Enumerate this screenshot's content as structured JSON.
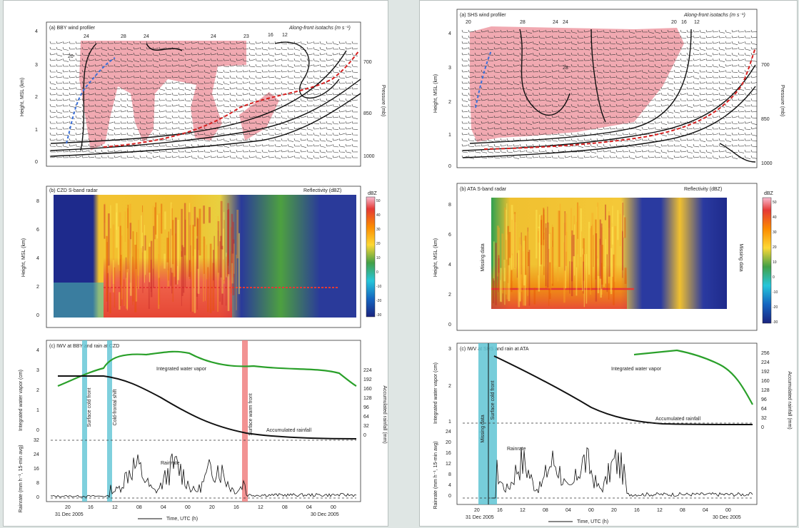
{
  "colors": {
    "page_bg": "#dfe6e4",
    "isotach_fill": "#f0a0a8",
    "front_red": "#d62020",
    "front_blue": "#3a6fd8",
    "ivw_green": "#2aa02a",
    "surface_cold_front_bar": "#5fc4d4",
    "warm_front_bar": "#f08080"
  },
  "left": {
    "panel_a": {
      "label": "(a) BBY wind profiler",
      "right_label": "Along-front isotachs (m s⁻¹)",
      "ylabel": "Height, MSL (km)",
      "ylabel_right": "Pressure (mb)",
      "yticks": [
        "4",
        "3",
        "2",
        "1",
        "0"
      ],
      "pressure_ticks": [
        "700",
        "850",
        "1000"
      ],
      "isotach_labels": [
        "24",
        "28",
        "24",
        "24",
        "23",
        "16",
        "12",
        "20"
      ]
    },
    "panel_b": {
      "label": "(b) CZD S-band radar",
      "right_label": "Reflectivity (dBZ)",
      "ylabel": "Height, MSL (km)",
      "yticks": [
        "8",
        "6",
        "4",
        "2",
        "0"
      ],
      "colorbar_unit": "dBZ",
      "colorbar_ticks": [
        "50",
        "40",
        "30",
        "20",
        "10",
        "0",
        "-10",
        "-20",
        "-30"
      ]
    },
    "panel_c": {
      "label": "(c) IWV at BBY and rain at CZD",
      "ylabel_top": "Integrated water vapor (cm)",
      "ylabel_bottom": "Rainrate (mm h⁻¹, 15-min avg)",
      "ylabel_right": "Accumulated rainfall (mm)",
      "left_ticks_top": [
        "4",
        "3",
        "2",
        "1",
        "0"
      ],
      "left_ticks_bottom": [
        "32",
        "24",
        "16",
        "8",
        "0"
      ],
      "right_ticks": [
        "224",
        "192",
        "160",
        "128",
        "96",
        "64",
        "32",
        "0"
      ],
      "curve_labels": {
        "ivw": "Integrated water vapor",
        "acc": "Accumulated rainfall",
        "rain": "Rainrate"
      },
      "event_labels": [
        "Surface cold front",
        "Cold-frontal shift",
        "Surface warm front"
      ],
      "xticks": [
        "20",
        "16",
        "12",
        "08",
        "04",
        "00",
        "20",
        "16",
        "12",
        "08",
        "04",
        "00"
      ],
      "date_left": "31 Dec 2005",
      "date_right": "30 Dec 2005",
      "xlabel": "Time, UTC (h)"
    }
  },
  "right": {
    "panel_a": {
      "label": "(a) SHS wind profiler",
      "right_label": "Along-front isotachs (m s⁻¹)",
      "ylabel": "Height, MSL (km)",
      "ylabel_right": "Pressure (mb)",
      "yticks": [
        "4",
        "3",
        "2",
        "1",
        "0"
      ],
      "pressure_ticks": [
        "700",
        "850",
        "1000"
      ],
      "isotach_labels": [
        "20",
        "28",
        "24",
        "24",
        "20",
        "16",
        "12",
        "28"
      ]
    },
    "panel_b": {
      "label": "(b) ATA S-band radar",
      "right_label": "Reflectivity (dBZ)",
      "ylabel": "Height, MSL (km)",
      "yticks": [
        "8",
        "6",
        "4",
        "2",
        "0"
      ],
      "missing_left": "Missing data",
      "missing_right": "Missing data",
      "colorbar_unit": "dBZ",
      "colorbar_ticks": [
        "50",
        "40",
        "30",
        "20",
        "10",
        "0",
        "-10",
        "-20",
        "-30"
      ]
    },
    "panel_c": {
      "label": "(c) IWV at SHS and rain at ATA",
      "ylabel_top": "Integrated water vapor (cm)",
      "ylabel_bottom": "Rainrate (mm h⁻¹, 15-min avg)",
      "ylabel_right": "Accumulated rainfall (mm)",
      "left_ticks_top": [
        "3",
        "2",
        "1"
      ],
      "left_ticks_bottom": [
        "24",
        "20",
        "16",
        "12",
        "8",
        "4",
        "0"
      ],
      "right_ticks": [
        "256",
        "224",
        "192",
        "160",
        "128",
        "96",
        "64",
        "32",
        "0"
      ],
      "curve_labels": {
        "ivw": "Integrated water vapor",
        "acc": "Accumulated rainfall",
        "rain": "Rainrate"
      },
      "missing": "Missing data",
      "event_labels": [
        "Surface cold front"
      ],
      "xticks": [
        "20",
        "16",
        "12",
        "08",
        "04",
        "00",
        "20",
        "16",
        "12",
        "08",
        "04",
        "00"
      ],
      "date_left": "31 Dec 2005",
      "date_right": "30 Dec 2005",
      "xlabel": "Time, UTC (h)"
    }
  }
}
